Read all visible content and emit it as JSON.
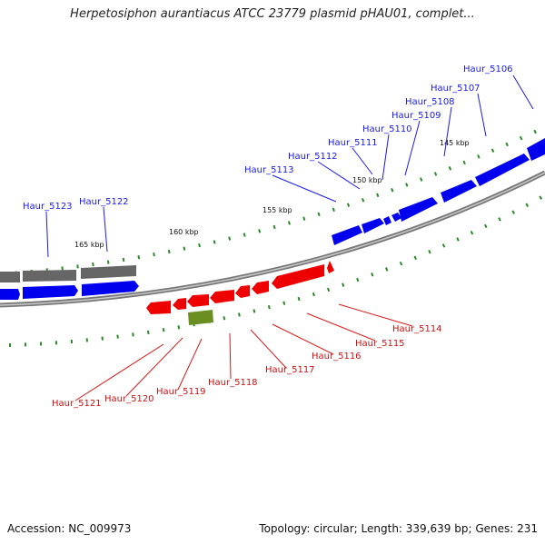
{
  "title": "Herpetosiphon aurantiacus ATCC 23779 plasmid pHAU01, complet...",
  "footer": {
    "accession": "Accession: NC_009973",
    "summary": "Topology: circular; Length: 339,639 bp; Genes: 231"
  },
  "scale_labels": [
    "145 kbp",
    "150 kbp",
    "155 kbp",
    "160 kbp",
    "165 kbp"
  ],
  "forward_genes": [
    "Haur_5106",
    "Haur_5107",
    "Haur_5108",
    "Haur_5109",
    "Haur_5110",
    "Haur_5111",
    "Haur_5112",
    "Haur_5113",
    "Haur_5122",
    "Haur_5123"
  ],
  "reverse_genes": [
    "Haur_5114",
    "Haur_5115",
    "Haur_5116",
    "Haur_5117",
    "Haur_5118",
    "Haur_5119",
    "Haur_5120",
    "Haur_5121"
  ],
  "colors": {
    "forward": "#0000ee",
    "reverse": "#ee0000",
    "other": "#6b8e23",
    "unlabeled": "#666666",
    "backbone": "#888888",
    "ticks": "#118811"
  }
}
